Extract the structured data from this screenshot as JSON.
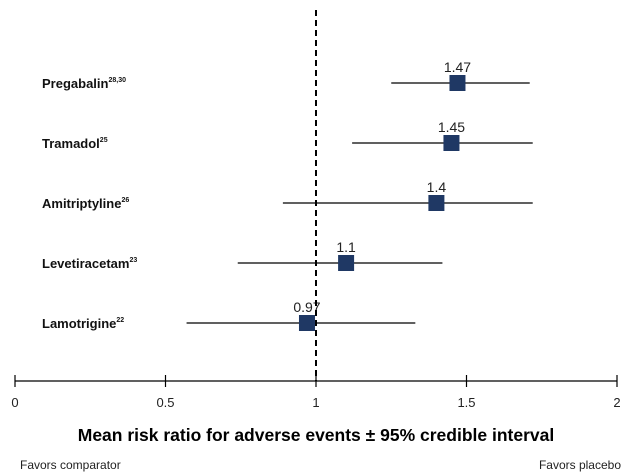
{
  "chart_data": {
    "type": "forest",
    "xlabel": "Mean risk ratio for adverse events ± 95% credible interval",
    "xlim": [
      0,
      2
    ],
    "xticks": [
      0,
      0.5,
      1,
      1.5,
      2
    ],
    "reference_line": 1,
    "marker_color": "#1f3864",
    "footer_left": "Favors comparator",
    "footer_right": "Favors placebo",
    "rows": [
      {
        "name": "Pregabalin",
        "ref": "28,30",
        "value": 1.47,
        "value_label": "1.47",
        "ci": [
          1.25,
          1.71
        ]
      },
      {
        "name": "Tramadol",
        "ref": "25",
        "value": 1.45,
        "value_label": "1.45",
        "ci": [
          1.12,
          1.72
        ]
      },
      {
        "name": "Amitriptyline",
        "ref": "26",
        "value": 1.4,
        "value_label": "1.4",
        "ci": [
          0.89,
          1.72
        ]
      },
      {
        "name": "Levetiracetam",
        "ref": "23",
        "value": 1.1,
        "value_label": "1.1",
        "ci": [
          0.74,
          1.42
        ]
      },
      {
        "name": "Lamotrigine",
        "ref": "22",
        "value": 0.97,
        "value_label": "0.97",
        "ci": [
          0.57,
          1.33
        ]
      }
    ]
  }
}
